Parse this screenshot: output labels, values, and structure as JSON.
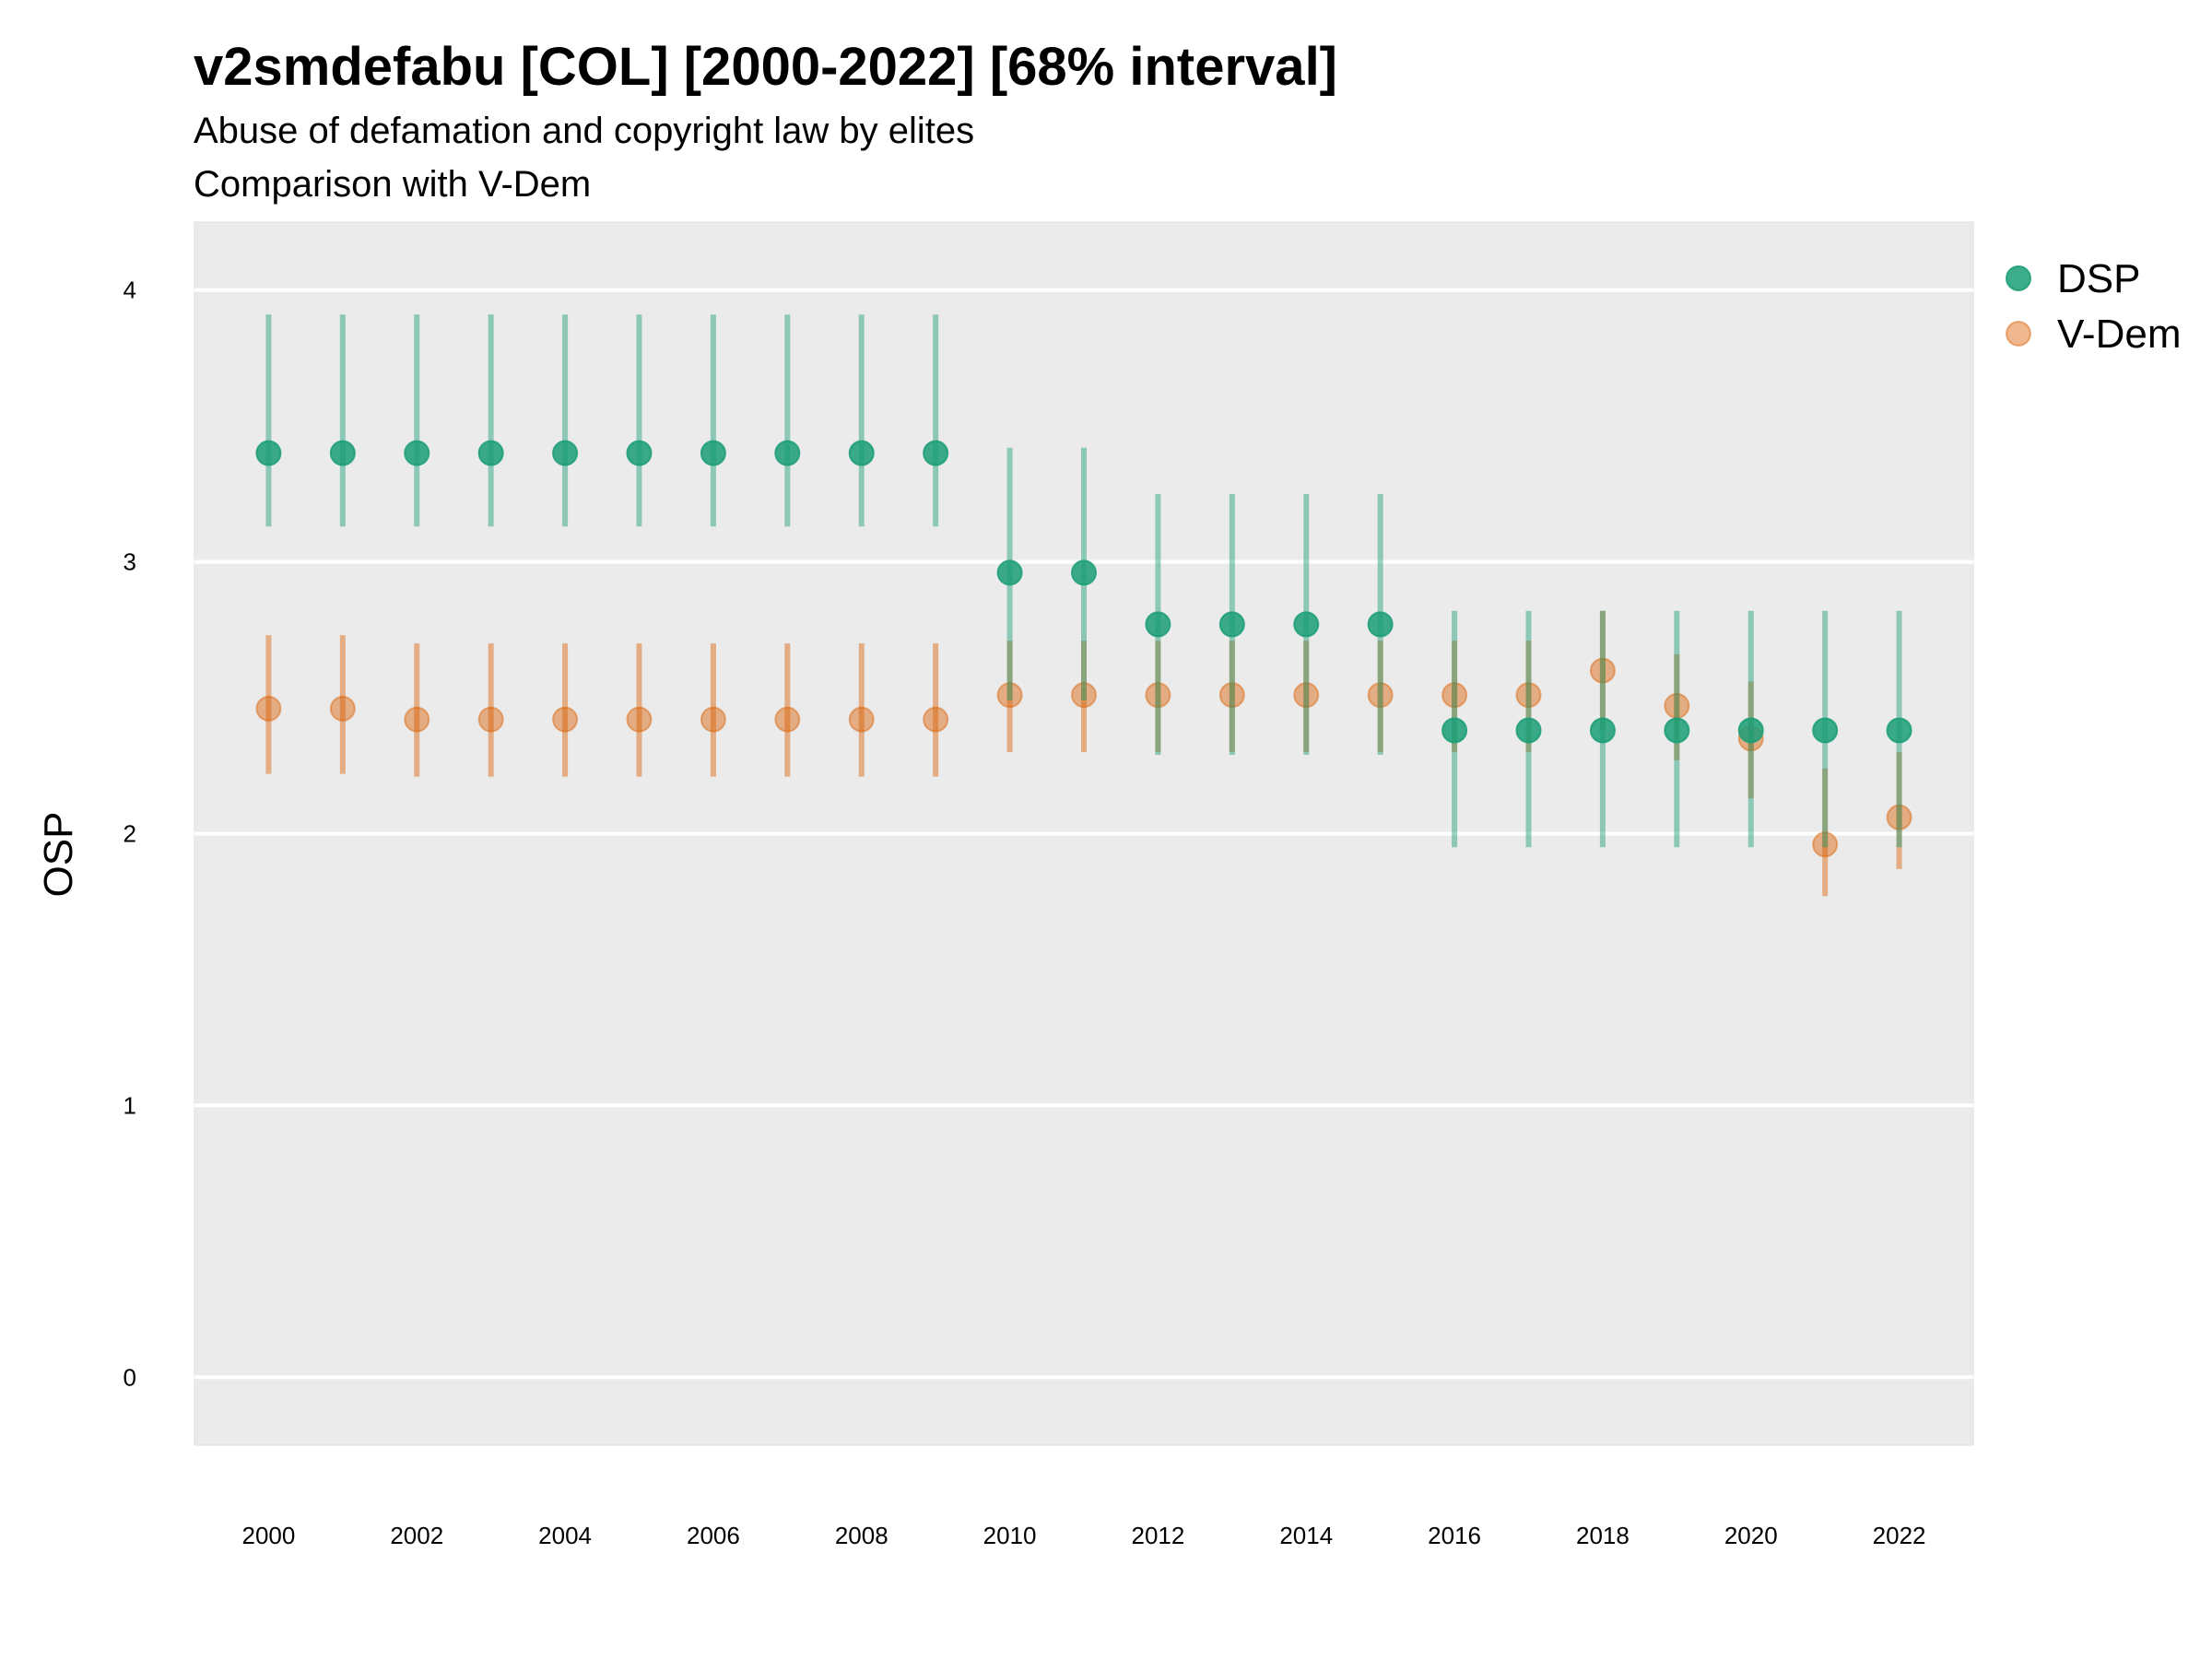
{
  "chart_data": {
    "type": "scatter",
    "title": "v2smdefabu [COL] [2000-2022] [68% interval]",
    "subtitle": "Abuse of defamation and copyright law by elites",
    "subtitle2": "Comparison with V-Dem",
    "ylabel": "OSP",
    "xlabel": "",
    "x": [
      2000,
      2001,
      2002,
      2003,
      2004,
      2005,
      2006,
      2007,
      2008,
      2009,
      2010,
      2011,
      2012,
      2013,
      2014,
      2015,
      2016,
      2017,
      2018,
      2019,
      2020,
      2021,
      2022
    ],
    "x_ticks": [
      2000,
      2002,
      2004,
      2006,
      2008,
      2010,
      2012,
      2014,
      2016,
      2018,
      2020,
      2022
    ],
    "y_ticks": [
      0,
      1,
      2,
      3,
      4
    ],
    "xlim": [
      1999,
      2023
    ],
    "ylim": [
      -0.25,
      4.25
    ],
    "grid": true,
    "legend_position": "right",
    "series": [
      {
        "name": "DSP",
        "color": "#1b9e77",
        "values": [
          3.4,
          3.4,
          3.4,
          3.4,
          3.4,
          3.4,
          3.4,
          3.4,
          3.4,
          3.4,
          2.96,
          2.96,
          2.77,
          2.77,
          2.77,
          2.77,
          2.38,
          2.38,
          2.38,
          2.38,
          2.38,
          2.38,
          2.38
        ],
        "lower": [
          3.13,
          3.13,
          3.13,
          3.13,
          3.13,
          3.13,
          3.13,
          3.13,
          3.13,
          3.13,
          2.49,
          2.49,
          2.29,
          2.29,
          2.29,
          2.29,
          1.95,
          1.95,
          1.95,
          1.95,
          1.95,
          1.95,
          1.95
        ],
        "upper": [
          3.91,
          3.91,
          3.91,
          3.91,
          3.91,
          3.91,
          3.91,
          3.91,
          3.91,
          3.91,
          3.42,
          3.42,
          3.25,
          3.25,
          3.25,
          3.25,
          2.82,
          2.82,
          2.82,
          2.82,
          2.82,
          2.82,
          2.82
        ]
      },
      {
        "name": "V-Dem",
        "color": "#d95f02",
        "values": [
          2.46,
          2.46,
          2.42,
          2.42,
          2.42,
          2.42,
          2.42,
          2.42,
          2.42,
          2.42,
          2.51,
          2.51,
          2.51,
          2.51,
          2.51,
          2.51,
          2.51,
          2.51,
          2.6,
          2.47,
          2.35,
          1.96,
          2.06
        ],
        "lower": [
          2.22,
          2.22,
          2.21,
          2.21,
          2.21,
          2.21,
          2.21,
          2.21,
          2.21,
          2.21,
          2.3,
          2.3,
          2.3,
          2.3,
          2.3,
          2.3,
          2.3,
          2.3,
          2.38,
          2.27,
          2.13,
          1.77,
          1.87
        ],
        "upper": [
          2.73,
          2.73,
          2.7,
          2.7,
          2.7,
          2.7,
          2.7,
          2.7,
          2.7,
          2.7,
          2.71,
          2.71,
          2.71,
          2.71,
          2.71,
          2.71,
          2.71,
          2.71,
          2.82,
          2.66,
          2.56,
          2.24,
          2.3
        ]
      }
    ]
  }
}
